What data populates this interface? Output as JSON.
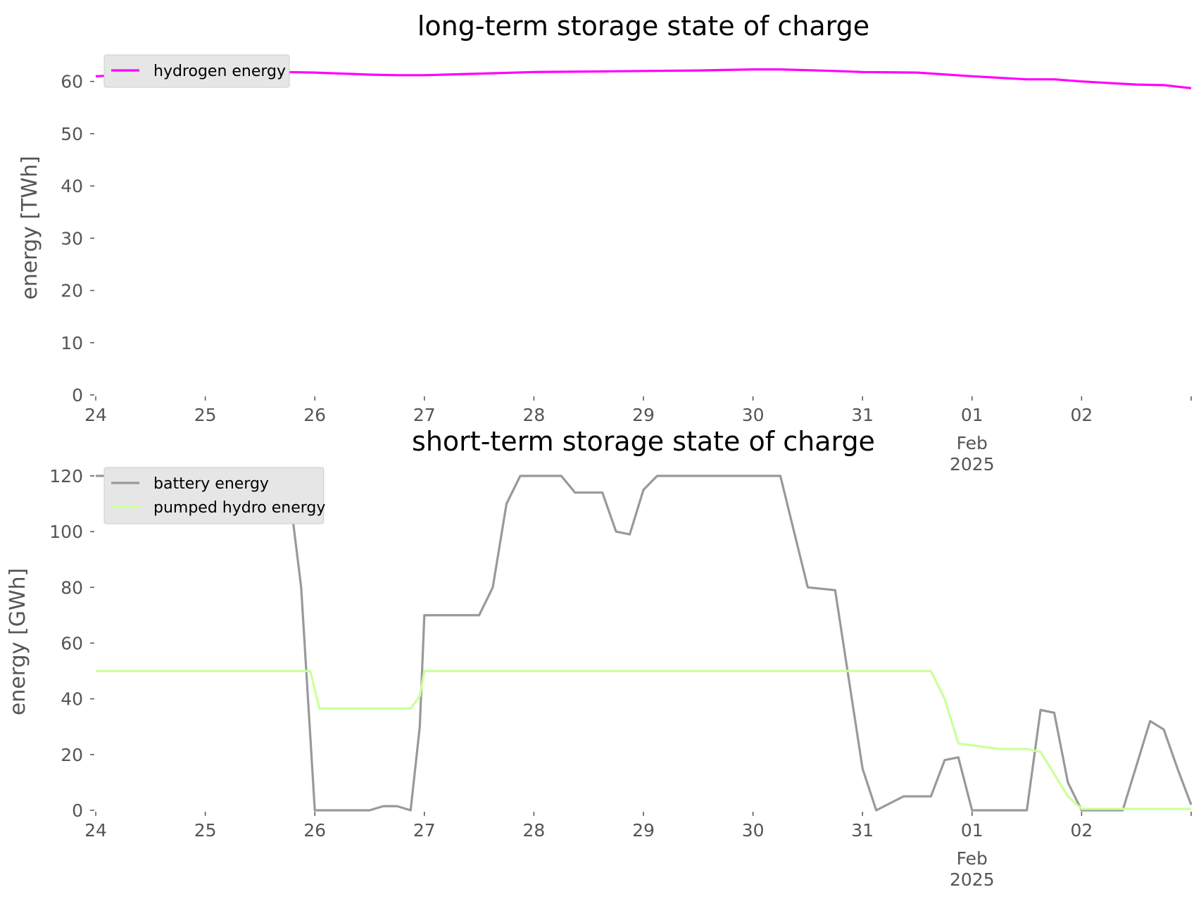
{
  "chart_data": [
    {
      "type": "line",
      "title": "long-term storage state of charge",
      "xlabel": "",
      "ylabel": "energy [TWh]",
      "xlim": [
        "2025-01-24",
        "2025-02-03"
      ],
      "ylim": [
        0,
        64
      ],
      "x_ticks": [
        {
          "x": "2025-01-24",
          "label": "24"
        },
        {
          "x": "2025-01-25",
          "label": "25"
        },
        {
          "x": "2025-01-26",
          "label": "26"
        },
        {
          "x": "2025-01-27",
          "label": "27"
        },
        {
          "x": "2025-01-28",
          "label": "28"
        },
        {
          "x": "2025-01-29",
          "label": "29"
        },
        {
          "x": "2025-01-30",
          "label": "30"
        },
        {
          "x": "2025-01-31",
          "label": "31"
        },
        {
          "x": "2025-02-01",
          "label": "01"
        },
        {
          "x": "2025-02-02",
          "label": "02"
        },
        {
          "x": "2025-02-03",
          "label": ""
        }
      ],
      "x_secondary_labels": [
        "Feb",
        "2025"
      ],
      "y_ticks": [
        0,
        10,
        20,
        30,
        40,
        50,
        60
      ],
      "grid": false,
      "legend": "top-left",
      "series": [
        {
          "name": "hydrogen energy",
          "color": "#ff00ff",
          "points": [
            [
              "2025-01-24 00:00",
              61.0
            ],
            [
              "2025-01-24 12:00",
              61.5
            ],
            [
              "2025-01-25 00:00",
              61.8
            ],
            [
              "2025-01-25 12:00",
              61.9
            ],
            [
              "2025-01-26 00:00",
              61.7
            ],
            [
              "2025-01-26 12:00",
              61.3
            ],
            [
              "2025-01-26 18:00",
              61.2
            ],
            [
              "2025-01-27 00:00",
              61.2
            ],
            [
              "2025-01-27 12:00",
              61.5
            ],
            [
              "2025-01-28 00:00",
              61.8
            ],
            [
              "2025-01-28 12:00",
              61.9
            ],
            [
              "2025-01-29 00:00",
              62.0
            ],
            [
              "2025-01-29 12:00",
              62.1
            ],
            [
              "2025-01-30 00:00",
              62.3
            ],
            [
              "2025-01-30 06:00",
              62.3
            ],
            [
              "2025-01-30 18:00",
              62.0
            ],
            [
              "2025-01-31 00:00",
              61.8
            ],
            [
              "2025-01-31 12:00",
              61.7
            ],
            [
              "2025-02-01 00:00",
              61.0
            ],
            [
              "2025-02-01 12:00",
              60.4
            ],
            [
              "2025-02-01 18:00",
              60.4
            ],
            [
              "2025-02-02 00:00",
              60.0
            ],
            [
              "2025-02-02 12:00",
              59.4
            ],
            [
              "2025-02-02 18:00",
              59.3
            ],
            [
              "2025-02-03 00:00",
              58.7
            ]
          ]
        }
      ]
    },
    {
      "type": "line",
      "title": "short-term storage state of charge",
      "xlabel": "",
      "ylabel": "energy [GWh]",
      "xlim": [
        "2025-01-24",
        "2025-02-03"
      ],
      "ylim": [
        0,
        121
      ],
      "x_ticks": [
        {
          "x": "2025-01-24",
          "label": "24"
        },
        {
          "x": "2025-01-25",
          "label": "25"
        },
        {
          "x": "2025-01-26",
          "label": "26"
        },
        {
          "x": "2025-01-27",
          "label": "27"
        },
        {
          "x": "2025-01-28",
          "label": "28"
        },
        {
          "x": "2025-01-29",
          "label": "29"
        },
        {
          "x": "2025-01-30",
          "label": "30"
        },
        {
          "x": "2025-01-31",
          "label": "31"
        },
        {
          "x": "2025-02-01",
          "label": "01"
        },
        {
          "x": "2025-02-02",
          "label": "02"
        },
        {
          "x": "2025-02-03",
          "label": ""
        }
      ],
      "x_secondary_labels": [
        "Feb",
        "2025"
      ],
      "y_ticks": [
        0,
        20,
        40,
        60,
        80,
        100,
        120
      ],
      "grid": false,
      "legend": "top-left",
      "series": [
        {
          "name": "battery energy",
          "color": "#999999",
          "points": [
            [
              "2025-01-24 00:00",
              120
            ],
            [
              "2025-01-25 18:00",
              120
            ],
            [
              "2025-01-25 21:00",
              80
            ],
            [
              "2025-01-26 00:00",
              0
            ],
            [
              "2025-01-26 12:00",
              0
            ],
            [
              "2025-01-26 15:00",
              1.5
            ],
            [
              "2025-01-26 18:00",
              1.5
            ],
            [
              "2025-01-26 21:00",
              0
            ],
            [
              "2025-01-26 23:00",
              30
            ],
            [
              "2025-01-27 00:00",
              70
            ],
            [
              "2025-01-27 12:00",
              70
            ],
            [
              "2025-01-27 15:00",
              80
            ],
            [
              "2025-01-27 18:00",
              110
            ],
            [
              "2025-01-27 21:00",
              120
            ],
            [
              "2025-01-28 06:00",
              120
            ],
            [
              "2025-01-28 09:00",
              114
            ],
            [
              "2025-01-28 15:00",
              114
            ],
            [
              "2025-01-28 18:00",
              100
            ],
            [
              "2025-01-28 21:00",
              99
            ],
            [
              "2025-01-29 00:00",
              115
            ],
            [
              "2025-01-29 03:00",
              120
            ],
            [
              "2025-01-30 06:00",
              120
            ],
            [
              "2025-01-30 09:00",
              100
            ],
            [
              "2025-01-30 12:00",
              80
            ],
            [
              "2025-01-30 18:00",
              79
            ],
            [
              "2025-01-31 00:00",
              15
            ],
            [
              "2025-01-31 03:00",
              0
            ],
            [
              "2025-01-31 09:00",
              5
            ],
            [
              "2025-01-31 15:00",
              5
            ],
            [
              "2025-01-31 18:00",
              18
            ],
            [
              "2025-01-31 21:00",
              19
            ],
            [
              "2025-02-01 00:00",
              0
            ],
            [
              "2025-02-01 12:00",
              0
            ],
            [
              "2025-02-01 15:00",
              36
            ],
            [
              "2025-02-01 18:00",
              35
            ],
            [
              "2025-02-01 21:00",
              10
            ],
            [
              "2025-02-02 00:00",
              0
            ],
            [
              "2025-02-02 09:00",
              0
            ],
            [
              "2025-02-02 15:00",
              32
            ],
            [
              "2025-02-02 18:00",
              29
            ],
            [
              "2025-02-02 21:00",
              15
            ],
            [
              "2025-02-03 00:00",
              2
            ]
          ]
        },
        {
          "name": "pumped hydro energy",
          "color": "#ccff99",
          "points": [
            [
              "2025-01-24 00:00",
              50
            ],
            [
              "2025-01-25 23:00",
              50
            ],
            [
              "2025-01-26 01:00",
              36.5
            ],
            [
              "2025-01-26 21:00",
              36.5
            ],
            [
              "2025-01-26 23:00",
              41
            ],
            [
              "2025-01-27 00:00",
              50
            ],
            [
              "2025-01-31 15:00",
              50
            ],
            [
              "2025-01-31 18:00",
              40
            ],
            [
              "2025-01-31 21:00",
              24
            ],
            [
              "2025-02-01 06:00",
              22
            ],
            [
              "2025-02-01 12:00",
              22
            ],
            [
              "2025-02-01 15:00",
              21
            ],
            [
              "2025-02-01 21:00",
              5
            ],
            [
              "2025-02-02 00:00",
              0.5
            ],
            [
              "2025-02-03 00:00",
              0.5
            ]
          ]
        }
      ]
    }
  ]
}
